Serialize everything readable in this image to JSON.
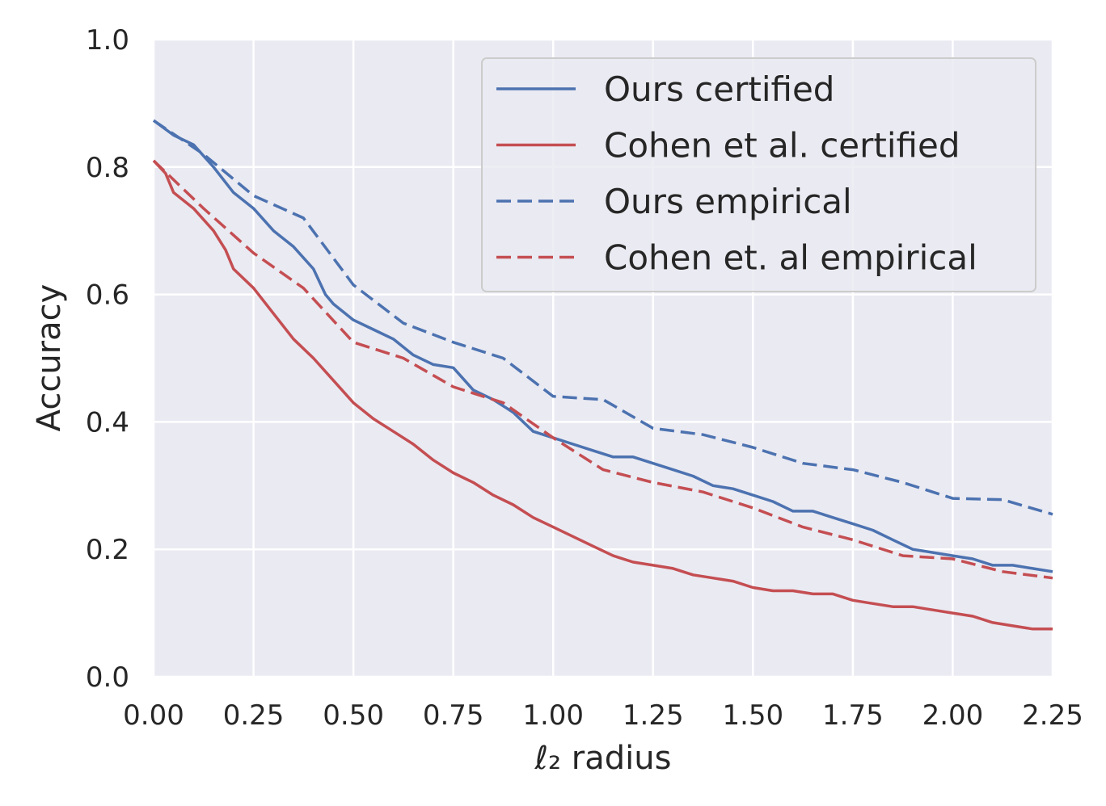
{
  "chart_data": {
    "type": "line",
    "title": "",
    "xlabel": "ℓ₂ radius",
    "ylabel": "Accuracy",
    "xlim": [
      0,
      2.25
    ],
    "ylim": [
      0,
      1.0
    ],
    "xticks": [
      "0.00",
      "0.25",
      "0.50",
      "0.75",
      "1.00",
      "1.25",
      "1.50",
      "1.75",
      "2.00",
      "2.25"
    ],
    "yticks": [
      "0.0",
      "0.2",
      "0.4",
      "0.6",
      "0.8",
      "1.0"
    ],
    "grid": true,
    "legend_position": "top-right",
    "series": [
      {
        "name": "Ours certified",
        "color": "#4c72b0",
        "dash": "solid",
        "x": [
          0,
          0.05,
          0.1,
          0.15,
          0.2,
          0.25,
          0.3,
          0.35,
          0.4,
          0.43,
          0.45,
          0.5,
          0.55,
          0.6,
          0.65,
          0.7,
          0.75,
          0.8,
          0.85,
          0.9,
          0.95,
          1.0,
          1.05,
          1.1,
          1.15,
          1.2,
          1.25,
          1.3,
          1.35,
          1.4,
          1.45,
          1.5,
          1.55,
          1.6,
          1.65,
          1.7,
          1.75,
          1.8,
          1.85,
          1.9,
          1.95,
          2.0,
          2.05,
          2.1,
          2.15,
          2.2,
          2.25
        ],
        "y": [
          0.873,
          0.85,
          0.835,
          0.8,
          0.76,
          0.735,
          0.7,
          0.675,
          0.64,
          0.6,
          0.585,
          0.56,
          0.545,
          0.53,
          0.505,
          0.49,
          0.485,
          0.45,
          0.435,
          0.415,
          0.385,
          0.375,
          0.365,
          0.355,
          0.345,
          0.345,
          0.335,
          0.325,
          0.315,
          0.3,
          0.295,
          0.285,
          0.275,
          0.26,
          0.26,
          0.25,
          0.24,
          0.23,
          0.215,
          0.2,
          0.195,
          0.19,
          0.185,
          0.175,
          0.175,
          0.17,
          0.165
        ]
      },
      {
        "name": "Cohen et al. certified",
        "color": "#c44e52",
        "dash": "solid",
        "x": [
          0,
          0.03,
          0.05,
          0.1,
          0.15,
          0.18,
          0.2,
          0.25,
          0.3,
          0.35,
          0.4,
          0.45,
          0.5,
          0.55,
          0.6,
          0.65,
          0.7,
          0.75,
          0.8,
          0.85,
          0.9,
          0.95,
          1.0,
          1.05,
          1.1,
          1.15,
          1.2,
          1.25,
          1.3,
          1.35,
          1.4,
          1.45,
          1.5,
          1.55,
          1.6,
          1.65,
          1.7,
          1.75,
          1.8,
          1.85,
          1.9,
          1.95,
          2.0,
          2.05,
          2.1,
          2.15,
          2.2,
          2.25
        ],
        "y": [
          0.81,
          0.79,
          0.76,
          0.735,
          0.7,
          0.67,
          0.64,
          0.61,
          0.57,
          0.53,
          0.5,
          0.465,
          0.43,
          0.405,
          0.385,
          0.365,
          0.34,
          0.32,
          0.305,
          0.285,
          0.27,
          0.25,
          0.235,
          0.22,
          0.205,
          0.19,
          0.18,
          0.175,
          0.17,
          0.16,
          0.155,
          0.15,
          0.14,
          0.135,
          0.135,
          0.13,
          0.13,
          0.12,
          0.115,
          0.11,
          0.11,
          0.105,
          0.1,
          0.095,
          0.085,
          0.08,
          0.075,
          0.075
        ]
      },
      {
        "name": "Ours empirical",
        "color": "#4c72b0",
        "dash": "dashed",
        "x": [
          0,
          0.125,
          0.25,
          0.375,
          0.5,
          0.625,
          0.75,
          0.875,
          1.0,
          1.125,
          1.25,
          1.375,
          1.5,
          1.625,
          1.75,
          1.875,
          2.0,
          2.125,
          2.25
        ],
        "y": [
          0.873,
          0.82,
          0.755,
          0.72,
          0.615,
          0.555,
          0.525,
          0.5,
          0.44,
          0.435,
          0.39,
          0.38,
          0.36,
          0.335,
          0.325,
          0.305,
          0.28,
          0.278,
          0.255
        ]
      },
      {
        "name": "Cohen et. al empirical",
        "color": "#c44e52",
        "dash": "dashed",
        "x": [
          0,
          0.125,
          0.25,
          0.375,
          0.5,
          0.625,
          0.75,
          0.875,
          1.0,
          1.125,
          1.25,
          1.375,
          1.5,
          1.625,
          1.75,
          1.875,
          2.0,
          2.125,
          2.25
        ],
        "y": [
          0.81,
          0.735,
          0.665,
          0.61,
          0.525,
          0.5,
          0.455,
          0.43,
          0.375,
          0.325,
          0.305,
          0.29,
          0.265,
          0.235,
          0.215,
          0.19,
          0.185,
          0.165,
          0.155
        ]
      }
    ]
  }
}
